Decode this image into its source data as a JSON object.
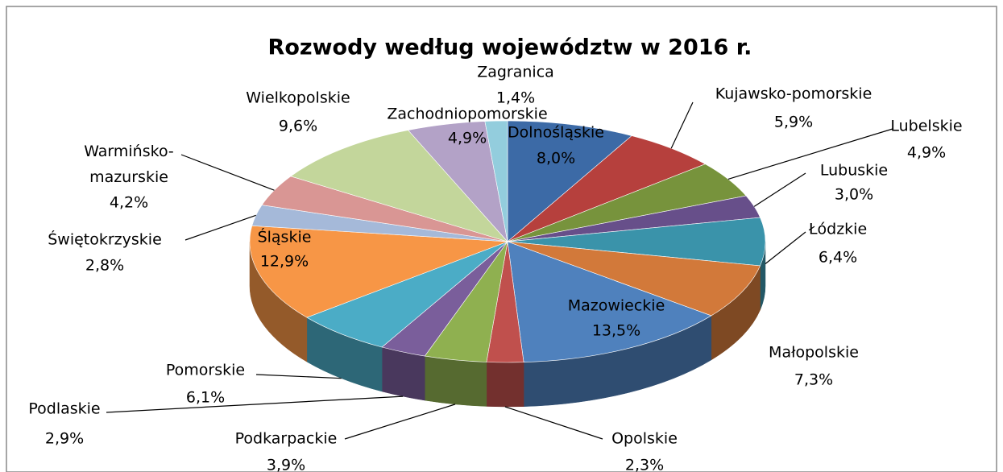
{
  "chart_data": {
    "type": "pie",
    "title": "Rozwody według województw w 2016 r.",
    "categories": [
      "Dolnośląskie",
      "Kujawsko-pomorskie",
      "Lubelskie",
      "Lubuskie",
      "Łódzkie",
      "Małopolskie",
      "Mazowieckie",
      "Opolskie",
      "Podkarpackie",
      "Podlaskie",
      "Pomorskie",
      "Śląskie",
      "Świętokrzyskie",
      "Warmińsko-mazurskie",
      "Wielkopolskie",
      "Zachodniopomorskie",
      "Zagranica"
    ],
    "values": [
      8.0,
      5.9,
      4.9,
      3.0,
      6.4,
      7.3,
      13.5,
      2.3,
      3.9,
      2.9,
      6.1,
      12.9,
      2.8,
      4.2,
      9.6,
      4.9,
      1.4
    ],
    "value_labels": [
      "8,0%",
      "5,9%",
      "4,9%",
      "3,0%",
      "6,4%",
      "7,3%",
      "13,5%",
      "2,3%",
      "3,9%",
      "2,9%",
      "6,1%",
      "12,9%",
      "2,8%",
      "4,2%",
      "9,6%",
      "4,9%",
      "1,4%"
    ],
    "colors": [
      "#3c6aa6",
      "#b6403d",
      "#77933c",
      "#674f8a",
      "#3a93aa",
      "#d2793a",
      "#4f81bd",
      "#c0504d",
      "#8fb050",
      "#7a5e9b",
      "#4bacc6",
      "#f79646",
      "#a5b9d9",
      "#d99694",
      "#c3d69b",
      "#b3a2c7",
      "#93cddd"
    ]
  }
}
